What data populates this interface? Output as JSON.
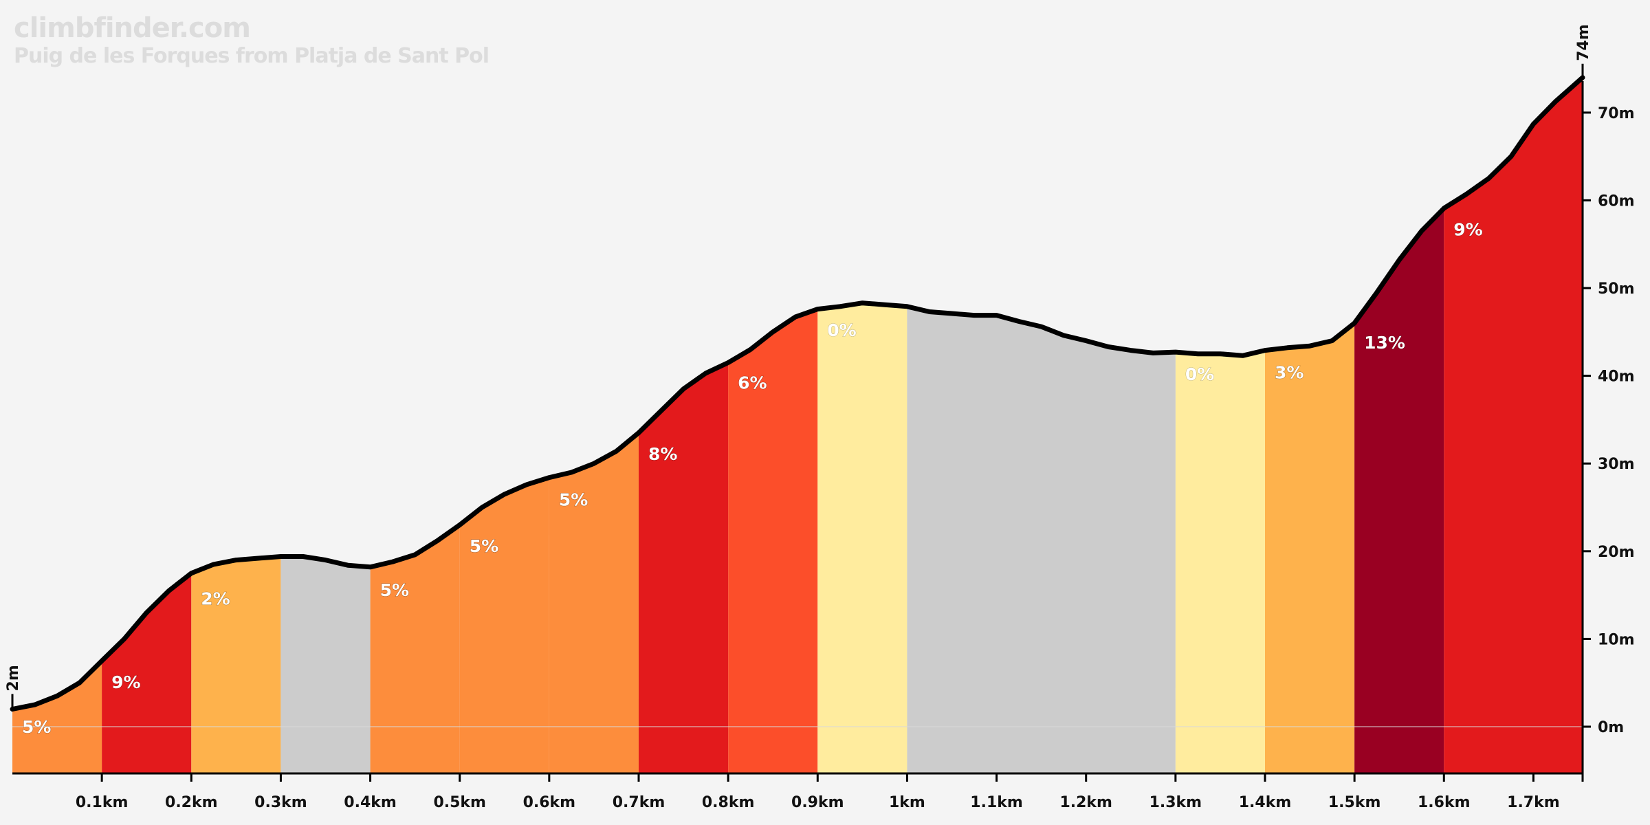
{
  "header": {
    "site": "climbfinder.com",
    "title": "Puig de les Forques from Platja de Sant Pol"
  },
  "colors": {
    "background": "#f4f4f4",
    "profile_line": "#000000",
    "gradient_scale": {
      "descent": "#cccccc",
      "0": "#ffec9e",
      "2": "#feb24c",
      "3": "#feb24c",
      "5": "#fd8d3c",
      "6": "#fc4e2a",
      "8": "#e31a1c",
      "9": "#e31a1c",
      "13": "#990022"
    }
  },
  "chart_data": {
    "type": "area",
    "xlabel": "",
    "ylabel": "",
    "xlim": [
      0,
      1.755
    ],
    "ylim": [
      -7,
      79
    ],
    "x_unit": "km",
    "y_unit": "m",
    "x_ticks": [
      "0.1km",
      "0.2km",
      "0.3km",
      "0.4km",
      "0.5km",
      "0.6km",
      "0.7km",
      "0.8km",
      "0.9km",
      "1km",
      "1.1km",
      "1.2km",
      "1.3km",
      "1.4km",
      "1.5km",
      "1.6km",
      "1.7km"
    ],
    "y_ticks": [
      "0m",
      "10m",
      "20m",
      "30m",
      "40m",
      "50m",
      "60m",
      "70m"
    ],
    "x_tick_values": [
      0.1,
      0.2,
      0.3,
      0.4,
      0.5,
      0.6,
      0.7,
      0.8,
      0.9,
      1.0,
      1.1,
      1.2,
      1.3,
      1.4,
      1.5,
      1.6,
      1.7
    ],
    "y_tick_values": [
      0,
      10,
      20,
      30,
      40,
      50,
      60,
      70
    ],
    "start_label": "2m",
    "end_label": "74m",
    "profile": [
      [
        0,
        2
      ],
      [
        0.025,
        2.5
      ],
      [
        0.05,
        3.5
      ],
      [
        0.075,
        5
      ],
      [
        0.1,
        7.5
      ],
      [
        0.125,
        10
      ],
      [
        0.15,
        13
      ],
      [
        0.175,
        15.5
      ],
      [
        0.2,
        17.5
      ],
      [
        0.225,
        18.5
      ],
      [
        0.25,
        19
      ],
      [
        0.275,
        19.2
      ],
      [
        0.3,
        19.4
      ],
      [
        0.325,
        19.4
      ],
      [
        0.35,
        19
      ],
      [
        0.375,
        18.4
      ],
      [
        0.4,
        18.2
      ],
      [
        0.425,
        18.8
      ],
      [
        0.45,
        19.6
      ],
      [
        0.475,
        21.2
      ],
      [
        0.5,
        23
      ],
      [
        0.525,
        25
      ],
      [
        0.55,
        26.5
      ],
      [
        0.575,
        27.6
      ],
      [
        0.6,
        28.4
      ],
      [
        0.625,
        29
      ],
      [
        0.65,
        30
      ],
      [
        0.675,
        31.4
      ],
      [
        0.7,
        33.5
      ],
      [
        0.725,
        36
      ],
      [
        0.75,
        38.5
      ],
      [
        0.775,
        40.3
      ],
      [
        0.8,
        41.5
      ],
      [
        0.825,
        43
      ],
      [
        0.85,
        45
      ],
      [
        0.875,
        46.7
      ],
      [
        0.9,
        47.6
      ],
      [
        0.925,
        47.9
      ],
      [
        0.95,
        48.3
      ],
      [
        0.975,
        48.1
      ],
      [
        1.0,
        47.9
      ],
      [
        1.025,
        47.3
      ],
      [
        1.05,
        47.1
      ],
      [
        1.075,
        46.9
      ],
      [
        1.1,
        46.9
      ],
      [
        1.125,
        46.2
      ],
      [
        1.15,
        45.6
      ],
      [
        1.175,
        44.6
      ],
      [
        1.2,
        44
      ],
      [
        1.225,
        43.3
      ],
      [
        1.25,
        42.9
      ],
      [
        1.275,
        42.6
      ],
      [
        1.3,
        42.7
      ],
      [
        1.325,
        42.5
      ],
      [
        1.35,
        42.5
      ],
      [
        1.375,
        42.3
      ],
      [
        1.4,
        42.9
      ],
      [
        1.425,
        43.2
      ],
      [
        1.45,
        43.4
      ],
      [
        1.475,
        44
      ],
      [
        1.5,
        46
      ],
      [
        1.525,
        49.5
      ],
      [
        1.55,
        53.2
      ],
      [
        1.575,
        56.5
      ],
      [
        1.6,
        59.1
      ],
      [
        1.625,
        60.7
      ],
      [
        1.65,
        62.5
      ],
      [
        1.675,
        65
      ],
      [
        1.7,
        68.7
      ],
      [
        1.725,
        71.3
      ],
      [
        1.755,
        74
      ]
    ],
    "segments": [
      {
        "x0": 0.0,
        "x1": 0.1,
        "grade": "5%",
        "color": "#fd8d3c",
        "label_y": -0.7
      },
      {
        "x0": 0.1,
        "x1": 0.2,
        "grade": "9%",
        "color": "#e31a1c",
        "label_y": 4.4
      },
      {
        "x0": 0.2,
        "x1": 0.3,
        "grade": "2%",
        "color": "#feb24c",
        "label_y": 13.9
      },
      {
        "x0": 0.3,
        "x1": 0.4,
        "grade": "",
        "color": "#cccccc",
        "label_y": null
      },
      {
        "x0": 0.4,
        "x1": 0.5,
        "grade": "5%",
        "color": "#fd8d3c",
        "label_y": 14.9
      },
      {
        "x0": 0.5,
        "x1": 0.6,
        "grade": "5%",
        "color": "#fd8d3c",
        "label_y": 19.9
      },
      {
        "x0": 0.6,
        "x1": 0.7,
        "grade": "5%",
        "color": "#fd8d3c",
        "label_y": 25.2
      },
      {
        "x0": 0.7,
        "x1": 0.8,
        "grade": "8%",
        "color": "#e31a1c",
        "label_y": 30.4
      },
      {
        "x0": 0.8,
        "x1": 0.9,
        "grade": "6%",
        "color": "#fc4e2a",
        "label_y": 38.5
      },
      {
        "x0": 0.9,
        "x1": 1.0,
        "grade": "0%",
        "color": "#ffec9e",
        "label_y": 44.5
      },
      {
        "x0": 1.0,
        "x1": 1.3,
        "grade": "",
        "color": "#cccccc",
        "label_y": null
      },
      {
        "x0": 1.3,
        "x1": 1.4,
        "grade": "0%",
        "color": "#ffec9e",
        "label_y": 39.5
      },
      {
        "x0": 1.4,
        "x1": 1.5,
        "grade": "3%",
        "color": "#feb24c",
        "label_y": 39.7
      },
      {
        "x0": 1.5,
        "x1": 1.6,
        "grade": "13%",
        "color": "#990022",
        "label_y": 43.1
      },
      {
        "x0": 1.6,
        "x1": 1.755,
        "grade": "9%",
        "color": "#e31a1c",
        "label_y": 56.0
      }
    ]
  }
}
